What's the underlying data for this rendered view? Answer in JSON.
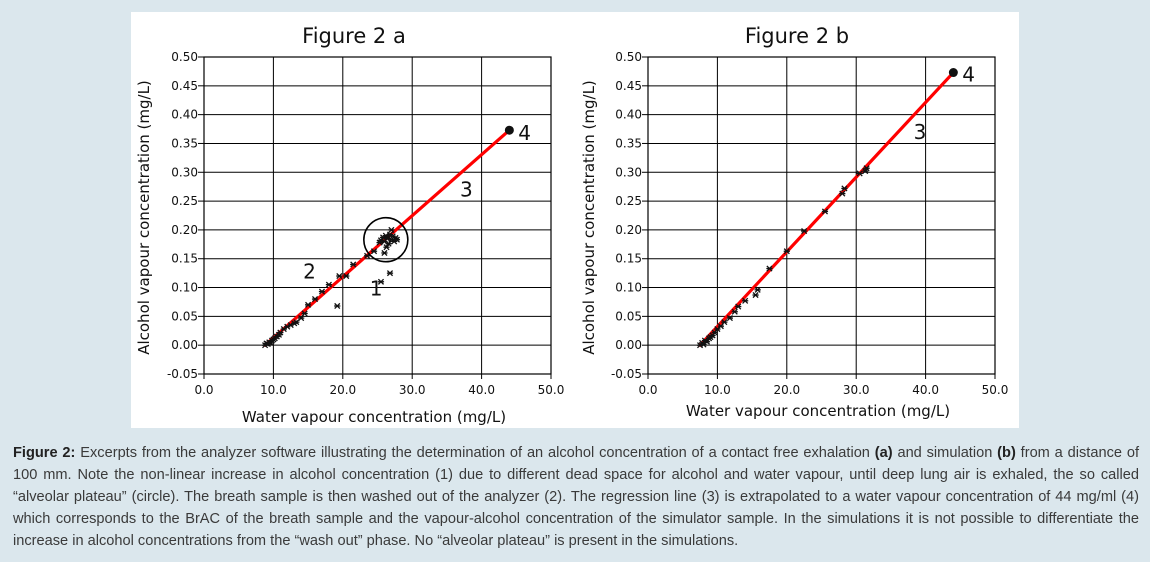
{
  "chart_data": [
    {
      "id": "a",
      "type": "scatter",
      "title": "Figure 2 a",
      "xlabel": "Water vapour concentration (mg/L)",
      "ylabel": "Alcohol vapour concentration (mg/L)",
      "xlim": [
        0,
        50
      ],
      "ylim": [
        -0.05,
        0.5
      ],
      "x_ticks": [
        "0.0",
        "10.0",
        "20.0",
        "30.0",
        "40.0",
        "50.0"
      ],
      "y_ticks": [
        "0.50",
        "0.45",
        "0.40",
        "0.35",
        "0.30",
        "0.25",
        "0.20",
        "0.15",
        "0.10",
        "0.05",
        "0.00",
        "-0.05"
      ],
      "grid": true,
      "points": [
        [
          8.8,
          0.0
        ],
        [
          9.0,
          0.003
        ],
        [
          9.2,
          0.002
        ],
        [
          9.4,
          0.005
        ],
        [
          9.6,
          0.004
        ],
        [
          9.8,
          0.008
        ],
        [
          10.0,
          0.01
        ],
        [
          10.2,
          0.012
        ],
        [
          10.5,
          0.015
        ],
        [
          10.8,
          0.018
        ],
        [
          11.0,
          0.022
        ],
        [
          11.5,
          0.028
        ],
        [
          12.0,
          0.032
        ],
        [
          12.5,
          0.035
        ],
        [
          13.0,
          0.038
        ],
        [
          13.3,
          0.04
        ],
        [
          14.0,
          0.047
        ],
        [
          14.5,
          0.055
        ],
        [
          15.0,
          0.07
        ],
        [
          16.0,
          0.08
        ],
        [
          17.0,
          0.093
        ],
        [
          18.0,
          0.105
        ],
        [
          19.2,
          0.068
        ],
        [
          19.5,
          0.12
        ],
        [
          20.5,
          0.12
        ],
        [
          21.5,
          0.14
        ],
        [
          23.5,
          0.155
        ],
        [
          24.5,
          0.163
        ],
        [
          25.5,
          0.11
        ],
        [
          26.8,
          0.125
        ],
        [
          25.5,
          0.182
        ],
        [
          25.8,
          0.187
        ],
        [
          26.0,
          0.18
        ],
        [
          26.2,
          0.19
        ],
        [
          26.4,
          0.185
        ],
        [
          26.6,
          0.176
        ],
        [
          26.8,
          0.192
        ],
        [
          27.0,
          0.183
        ],
        [
          27.2,
          0.189
        ],
        [
          27.4,
          0.18
        ],
        [
          27.6,
          0.186
        ],
        [
          26.3,
          0.17
        ],
        [
          27.0,
          0.2
        ],
        [
          26.0,
          0.16
        ],
        [
          25.3,
          0.178
        ],
        [
          27.8,
          0.183
        ]
      ],
      "regression": {
        "x": [
          8.8,
          44.0
        ],
        "y": [
          0.0,
          0.373
        ]
      },
      "endpoint": [
        44.0,
        0.373
      ],
      "plateau_circle_center": [
        26.2,
        0.183
      ],
      "annotations": [
        {
          "text": "1",
          "x": 24.8,
          "y": 0.098
        },
        {
          "text": "2",
          "x": 15.2,
          "y": 0.128
        },
        {
          "text": "3",
          "x": 37.8,
          "y": 0.27
        },
        {
          "text": "4",
          "x": 46.2,
          "y": 0.368
        }
      ]
    },
    {
      "id": "b",
      "type": "scatter",
      "title": "Figure 2 b",
      "xlabel": "Water vapour concentration (mg/L)",
      "ylabel": "Alcohol vapour concentration (mg/L)",
      "xlim": [
        0,
        50
      ],
      "ylim": [
        -0.05,
        0.5
      ],
      "x_ticks": [
        "0.0",
        "10.0",
        "20.0",
        "30.0",
        "40.0",
        "50.0"
      ],
      "y_ticks": [
        "0.50",
        "0.45",
        "0.40",
        "0.35",
        "0.30",
        "0.25",
        "0.20",
        "0.15",
        "0.10",
        "0.05",
        "0.00",
        "-0.05"
      ],
      "grid": true,
      "points": [
        [
          7.5,
          0.0
        ],
        [
          7.8,
          0.004
        ],
        [
          8.0,
          0.001
        ],
        [
          8.2,
          0.008
        ],
        [
          8.5,
          0.006
        ],
        [
          8.8,
          0.012
        ],
        [
          9.0,
          0.014
        ],
        [
          9.3,
          0.017
        ],
        [
          9.6,
          0.022
        ],
        [
          10.0,
          0.028
        ],
        [
          10.5,
          0.033
        ],
        [
          11.0,
          0.04
        ],
        [
          11.8,
          0.047
        ],
        [
          12.5,
          0.058
        ],
        [
          13.0,
          0.067
        ],
        [
          14.0,
          0.077
        ],
        [
          15.5,
          0.087
        ],
        [
          15.8,
          0.096
        ],
        [
          17.5,
          0.133
        ],
        [
          20.0,
          0.163
        ],
        [
          22.5,
          0.198
        ],
        [
          25.5,
          0.232
        ],
        [
          28.0,
          0.263
        ],
        [
          28.3,
          0.272
        ],
        [
          30.5,
          0.298
        ],
        [
          31.3,
          0.302
        ],
        [
          31.5,
          0.307
        ]
      ],
      "regression": {
        "x": [
          7.5,
          44.0
        ],
        "y": [
          0.0,
          0.473
        ]
      },
      "endpoint": [
        44.0,
        0.473
      ],
      "annotations": [
        {
          "text": "3",
          "x": 39.2,
          "y": 0.37
        },
        {
          "text": "4",
          "x": 46.2,
          "y": 0.47
        }
      ]
    }
  ],
  "caption": {
    "label": "Figure 2:",
    "text_1": " Excerpts from the analyzer software illustrating the determination of an alcohol concentration of a contact free exhalation ",
    "bold_a": "(a)",
    "text_2": " and simulation ",
    "bold_b": "(b)",
    "text_3": " from a distance of 100 mm. Note the non-linear increase in alcohol concentration (1) due to different dead space for alcohol and water vapour, until deep lung air is exhaled, the so called “alveolar plateau” (circle). The breath sample is then washed out of the analyzer (2). The regression line (3) is extrapolated to a water vapour concentration of 44 mg/ml (4) which corresponds to the BrAC of the breath sample and the vapour-alcohol concentration of the simulator sample. In the simulations it is not possible to differentiate the increase in alcohol concentrations from the “wash out” phase. No “alveolar plateau” is present in the simulations."
  },
  "colors": {
    "regression_line": "#ff0000",
    "points": "#111111",
    "grid": "#000000",
    "page_background": "#dbe7ed",
    "panel_background": "#ffffff"
  }
}
